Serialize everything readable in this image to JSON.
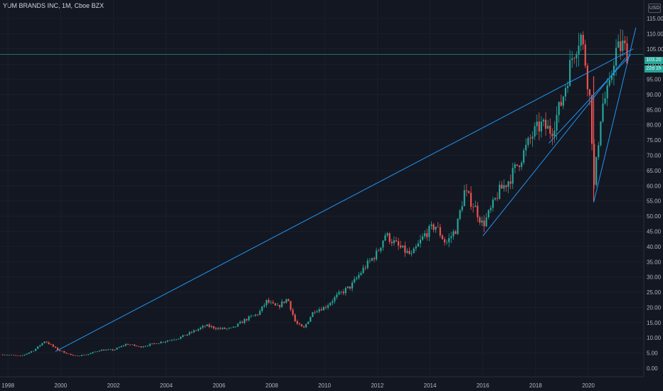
{
  "header": {
    "title": "YUM BRANDS INC, 1M, Cboe BZX",
    "currency": "USD"
  },
  "price_tag": {
    "price": "103.20",
    "countdown": "22d 1h"
  },
  "colors": {
    "background": "#131722",
    "up": "#26a69a",
    "down": "#ef5350",
    "trendline": "#2196f3",
    "grid": "#1f2430"
  },
  "chart_data": {
    "type": "candlestick",
    "ylim": [
      0,
      117
    ],
    "xlim": [
      1997.7,
      2022.1
    ],
    "y_ticks": [
      "0.00",
      "5.00",
      "10.00",
      "15.00",
      "20.00",
      "25.00",
      "30.00",
      "35.00",
      "40.00",
      "45.00",
      "50.00",
      "55.00",
      "60.00",
      "65.00",
      "70.00",
      "75.00",
      "80.00",
      "85.00",
      "90.00",
      "95.00",
      "100.00",
      "105.00",
      "110.00",
      "115.00"
    ],
    "x_ticks": [
      "1998",
      "2000",
      "2002",
      "2004",
      "2006",
      "2008",
      "2010",
      "2012",
      "2014",
      "2016",
      "2018",
      "2020"
    ],
    "last_price": 103.2,
    "price_path": [
      [
        1997.8,
        4.5
      ],
      [
        1998.5,
        4
      ],
      [
        1999.0,
        6
      ],
      [
        1999.4,
        9
      ],
      [
        1999.9,
        6
      ],
      [
        2000.5,
        4
      ],
      [
        2001.0,
        4.5
      ],
      [
        2001.5,
        6
      ],
      [
        2002.0,
        6
      ],
      [
        2002.5,
        8
      ],
      [
        2003.0,
        7
      ],
      [
        2003.5,
        8
      ],
      [
        2004.0,
        9
      ],
      [
        2004.5,
        10
      ],
      [
        2005.0,
        12
      ],
      [
        2005.5,
        14
      ],
      [
        2006.0,
        13
      ],
      [
        2006.5,
        13
      ],
      [
        2007.0,
        16
      ],
      [
        2007.5,
        18
      ],
      [
        2007.8,
        22
      ],
      [
        2008.2,
        20
      ],
      [
        2008.6,
        23
      ],
      [
        2008.9,
        15
      ],
      [
        2009.2,
        13
      ],
      [
        2009.6,
        19
      ],
      [
        2010.0,
        20
      ],
      [
        2010.5,
        24
      ],
      [
        2011.0,
        27
      ],
      [
        2011.5,
        33
      ],
      [
        2012.0,
        38
      ],
      [
        2012.3,
        44
      ],
      [
        2012.8,
        40
      ],
      [
        2013.3,
        37
      ],
      [
        2013.8,
        44
      ],
      [
        2014.2,
        47
      ],
      [
        2014.6,
        41
      ],
      [
        2015.0,
        46
      ],
      [
        2015.3,
        58
      ],
      [
        2015.7,
        53
      ],
      [
        2016.0,
        47
      ],
      [
        2016.3,
        52
      ],
      [
        2016.6,
        58
      ],
      [
        2017.0,
        62
      ],
      [
        2017.5,
        70
      ],
      [
        2017.9,
        77
      ],
      [
        2018.2,
        80
      ],
      [
        2018.6,
        78
      ],
      [
        2019.0,
        88
      ],
      [
        2019.4,
        103
      ],
      [
        2019.7,
        110
      ],
      [
        2019.9,
        100
      ],
      [
        2020.1,
        85
      ],
      [
        2020.2,
        58
      ],
      [
        2020.5,
        86
      ],
      [
        2020.8,
        92
      ],
      [
        2021.0,
        104
      ],
      [
        2021.3,
        106
      ],
      [
        2021.5,
        103.2
      ]
    ],
    "trendlines": [
      {
        "x1": 1999.8,
        "y1": 5.5,
        "x2": 2021.7,
        "y2": 105
      },
      {
        "x1": 2016.0,
        "y1": 43.5,
        "x2": 2021.4,
        "y2": 102
      },
      {
        "x1": 2020.2,
        "y1": 54.5,
        "x2": 2021.8,
        "y2": 112
      },
      {
        "x1": 2018.5,
        "y1": 74,
        "x2": 2021.6,
        "y2": 103
      }
    ]
  }
}
